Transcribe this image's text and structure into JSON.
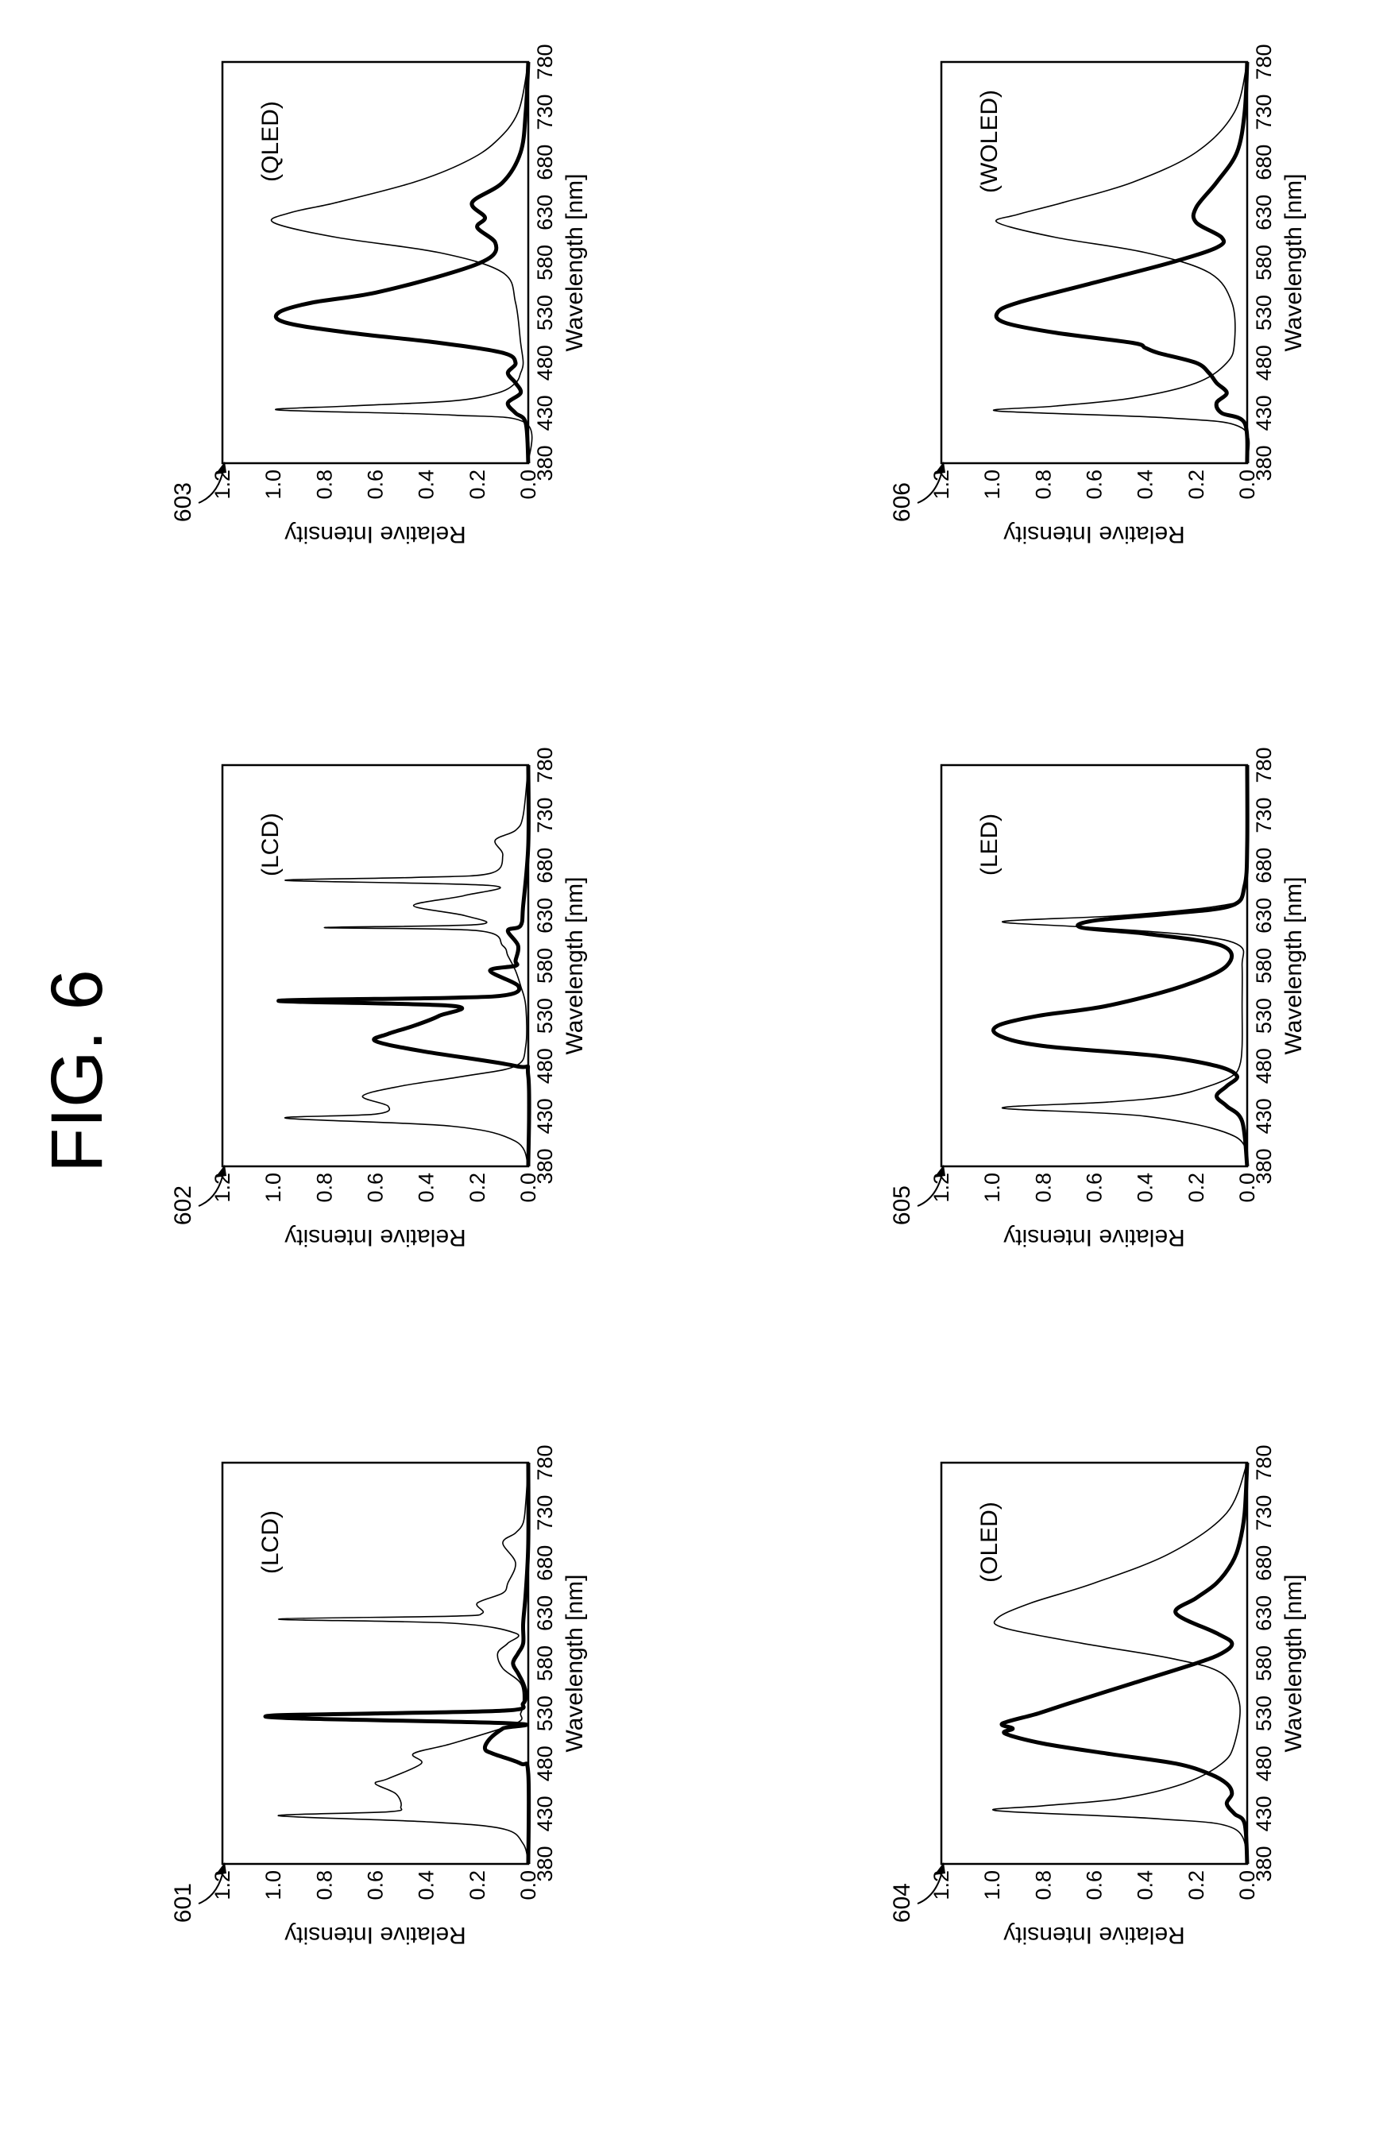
{
  "figure": {
    "title": "FIG. 6"
  },
  "chart_data": [
    {
      "ref": "601",
      "display": "(LCD)",
      "type": "line",
      "xlabel": "Wavelength [nm]",
      "ylabel": "Relative Intensity",
      "xlim": [
        380,
        780
      ],
      "ylim": [
        0,
        1.2
      ],
      "xticks": [
        "380",
        "430",
        "480",
        "530",
        "580",
        "630",
        "680",
        "730",
        "780"
      ],
      "yticks": [
        "0.0",
        "0.2",
        "0.4",
        "0.6",
        "0.8",
        "1.0",
        "1.2"
      ],
      "series": [
        {
          "style": "thin",
          "x": [
            380,
            400,
            415,
            422,
            428,
            432,
            437,
            450,
            460,
            465,
            480,
            490,
            500,
            520,
            530,
            540,
            560,
            575,
            590,
            600,
            610,
            620,
            624,
            627,
            630,
            640,
            650,
            660,
            680,
            700,
            710,
            720,
            740,
            780
          ],
          "y": [
            0,
            0.02,
            0.1,
            0.4,
            0.98,
            0.55,
            0.5,
            0.52,
            0.6,
            0.55,
            0.42,
            0.45,
            0.3,
            0.05,
            0.03,
            0.02,
            0.03,
            0.1,
            0.12,
            0.08,
            0.05,
            0.3,
            0.98,
            0.3,
            0.18,
            0.2,
            0.1,
            0.08,
            0.05,
            0.1,
            0.05,
            0.02,
            0.01,
            0
          ]
        },
        {
          "style": "thick",
          "x": [
            380,
            470,
            480,
            490,
            495,
            505,
            515,
            520,
            525,
            528,
            530,
            533,
            540,
            550,
            560,
            570,
            580,
            590,
            600,
            620,
            650,
            700,
            780
          ],
          "y": [
            0,
            0,
            0.03,
            0.14,
            0.17,
            0.15,
            0.1,
            0.06,
            0.9,
            1.0,
            0.6,
            0.08,
            0.02,
            0.01,
            0.02,
            0.04,
            0.06,
            0.04,
            0.02,
            0.02,
            0.01,
            0.0,
            0
          ]
        }
      ]
    },
    {
      "ref": "602",
      "display": "(LCD)",
      "type": "line",
      "xlabel": "Wavelength [nm]",
      "ylabel": "Relative Intensity",
      "xlim": [
        380,
        780
      ],
      "ylim": [
        0,
        1.2
      ],
      "xticks": [
        "380",
        "430",
        "480",
        "530",
        "580",
        "630",
        "680",
        "730",
        "780"
      ],
      "yticks": [
        "0.0",
        "0.2",
        "0.4",
        "0.6",
        "0.8",
        "1.0",
        "1.2"
      ],
      "series": [
        {
          "style": "thin",
          "x": [
            380,
            405,
            420,
            428,
            432,
            440,
            450,
            460,
            470,
            480,
            500,
            540,
            560,
            575,
            590,
            600,
            615,
            618,
            621,
            630,
            640,
            650,
            660,
            665,
            668,
            672,
            690,
            705,
            715,
            730,
            780
          ],
          "y": [
            0,
            0.05,
            0.3,
            0.95,
            0.6,
            0.55,
            0.65,
            0.5,
            0.25,
            0.05,
            0.01,
            0.01,
            0.03,
            0.05,
            0.08,
            0.1,
            0.2,
            0.8,
            0.2,
            0.25,
            0.45,
            0.25,
            0.15,
            0.95,
            0.45,
            0.15,
            0.1,
            0.13,
            0.05,
            0.02,
            0
          ]
        },
        {
          "style": "thick",
          "x": [
            380,
            470,
            480,
            495,
            505,
            512,
            520,
            530,
            540,
            545,
            548,
            551,
            560,
            575,
            580,
            585,
            600,
            615,
            620,
            640,
            700,
            780
          ],
          "y": [
            0,
            0,
            0.05,
            0.42,
            0.6,
            0.55,
            0.45,
            0.35,
            0.3,
            0.98,
            0.3,
            0.08,
            0.04,
            0.15,
            0.05,
            0.05,
            0.04,
            0.08,
            0.03,
            0.02,
            0.0,
            0
          ]
        }
      ]
    },
    {
      "ref": "603",
      "display": "(QLED)",
      "type": "line",
      "xlabel": "Wavelength [nm]",
      "ylabel": "Relative Intensity",
      "xlim": [
        380,
        780
      ],
      "ylim": [
        0,
        1.2
      ],
      "xticks": [
        "380",
        "430",
        "480",
        "530",
        "580",
        "630",
        "680",
        "730",
        "780"
      ],
      "yticks": [
        "0.0",
        "0.2",
        "0.4",
        "0.6",
        "0.8",
        "1.0",
        "1.2"
      ],
      "series": [
        {
          "style": "thin",
          "x": [
            380,
            420,
            428,
            433,
            437,
            442,
            450,
            460,
            470,
            480,
            500,
            540,
            570,
            590,
            605,
            620,
            630,
            640,
            660,
            680,
            700,
            730,
            780
          ],
          "y": [
            0,
            0.01,
            0.3,
            0.98,
            0.7,
            0.3,
            0.12,
            0.05,
            0.03,
            0.02,
            0.03,
            0.05,
            0.1,
            0.35,
            0.75,
            1.0,
            0.93,
            0.75,
            0.45,
            0.25,
            0.13,
            0.04,
            0
          ]
        },
        {
          "style": "thick",
          "x": [
            380,
            420,
            430,
            440,
            450,
            460,
            470,
            480,
            490,
            500,
            510,
            520,
            530,
            540,
            550,
            570,
            585,
            600,
            615,
            625,
            640,
            660,
            690,
            730,
            780
          ],
          "y": [
            0,
            0.01,
            0.05,
            0.08,
            0.03,
            0.05,
            0.08,
            0.05,
            0.1,
            0.35,
            0.7,
            0.95,
            0.98,
            0.85,
            0.6,
            0.3,
            0.15,
            0.13,
            0.2,
            0.17,
            0.22,
            0.1,
            0.03,
            0.01,
            0
          ]
        }
      ]
    },
    {
      "ref": "604",
      "display": "(OLED)",
      "type": "line",
      "xlabel": "Wavelength [nm]",
      "ylabel": "Relative Intensity",
      "xlim": [
        380,
        780
      ],
      "ylim": [
        0,
        1.2
      ],
      "xticks": [
        "380",
        "430",
        "480",
        "530",
        "580",
        "630",
        "680",
        "730",
        "780"
      ],
      "yticks": [
        "0.0",
        "0.2",
        "0.4",
        "0.6",
        "0.8",
        "1.0",
        "1.2"
      ],
      "series": [
        {
          "style": "thin",
          "x": [
            380,
            415,
            425,
            433,
            438,
            445,
            460,
            480,
            500,
            540,
            570,
            585,
            600,
            615,
            625,
            640,
            660,
            690,
            730,
            780
          ],
          "y": [
            0,
            0.05,
            0.35,
            0.98,
            0.8,
            0.5,
            0.25,
            0.1,
            0.05,
            0.03,
            0.1,
            0.3,
            0.65,
            0.95,
            0.98,
            0.85,
            0.6,
            0.3,
            0.08,
            0
          ]
        },
        {
          "style": "thick",
          "x": [
            380,
            420,
            430,
            440,
            450,
            460,
            470,
            480,
            490,
            500,
            510,
            515,
            520,
            530,
            540,
            560,
            580,
            590,
            600,
            610,
            630,
            645,
            660,
            680,
            700,
            730,
            780
          ],
          "y": [
            0,
            0.01,
            0.05,
            0.08,
            0.06,
            0.08,
            0.15,
            0.28,
            0.55,
            0.8,
            0.95,
            0.92,
            0.96,
            0.82,
            0.7,
            0.45,
            0.2,
            0.1,
            0.06,
            0.12,
            0.28,
            0.2,
            0.12,
            0.06,
            0.03,
            0.01,
            0
          ]
        }
      ]
    },
    {
      "ref": "605",
      "display": "(LED)",
      "type": "line",
      "xlabel": "Wavelength [nm]",
      "ylabel": "Relative Intensity",
      "xlim": [
        380,
        780
      ],
      "ylim": [
        0,
        1.2
      ],
      "xticks": [
        "380",
        "430",
        "480",
        "530",
        "580",
        "630",
        "680",
        "730",
        "780"
      ],
      "yticks": [
        "0.0",
        "0.2",
        "0.4",
        "0.6",
        "0.8",
        "1.0",
        "1.2"
      ],
      "series": [
        {
          "style": "thin",
          "x": [
            380,
            410,
            430,
            438,
            444,
            450,
            460,
            470,
            480,
            500,
            540,
            580,
            600,
            610,
            618,
            624,
            630,
            640,
            650,
            680,
            780
          ],
          "y": [
            0,
            0.05,
            0.4,
            0.96,
            0.55,
            0.3,
            0.15,
            0.06,
            0.03,
            0.02,
            0.02,
            0.02,
            0.03,
            0.2,
            0.6,
            0.96,
            0.5,
            0.1,
            0.02,
            0,
            0
          ]
        },
        {
          "style": "thick",
          "x": [
            380,
            425,
            440,
            450,
            460,
            470,
            480,
            490,
            500,
            510,
            520,
            530,
            540,
            560,
            580,
            600,
            612,
            618,
            625,
            632,
            640,
            660,
            700,
            780
          ],
          "y": [
            0,
            0.02,
            0.08,
            0.12,
            0.08,
            0.04,
            0.12,
            0.35,
            0.8,
            0.97,
            0.98,
            0.82,
            0.55,
            0.25,
            0.08,
            0.1,
            0.4,
            0.65,
            0.6,
            0.3,
            0.06,
            0.01,
            0,
            0
          ]
        }
      ]
    },
    {
      "ref": "606",
      "display": "(WOLED)",
      "type": "line",
      "xlabel": "Wavelength [nm]",
      "ylabel": "Relative Intensity",
      "xlim": [
        380,
        780
      ],
      "ylim": [
        0,
        1.2
      ],
      "xticks": [
        "380",
        "430",
        "480",
        "530",
        "580",
        "630",
        "680",
        "730",
        "780"
      ],
      "yticks": [
        "0.0",
        "0.2",
        "0.4",
        "0.6",
        "0.8",
        "1.0",
        "1.2"
      ],
      "series": [
        {
          "style": "thin",
          "x": [
            380,
            415,
            425,
            432,
            437,
            445,
            460,
            480,
            500,
            540,
            570,
            590,
            605,
            620,
            628,
            640,
            660,
            690,
            730,
            780
          ],
          "y": [
            0,
            0.02,
            0.3,
            0.98,
            0.75,
            0.45,
            0.2,
            0.08,
            0.05,
            0.06,
            0.15,
            0.4,
            0.75,
            0.98,
            0.9,
            0.72,
            0.45,
            0.2,
            0.05,
            0
          ]
        },
        {
          "style": "thick",
          "x": [
            380,
            420,
            430,
            440,
            450,
            460,
            470,
            480,
            490,
            495,
            500,
            510,
            520,
            530,
            540,
            560,
            580,
            595,
            605,
            620,
            635,
            660,
            690,
            730,
            780
          ],
          "y": [
            0,
            0.01,
            0.1,
            0.12,
            0.08,
            0.12,
            0.15,
            0.2,
            0.35,
            0.4,
            0.45,
            0.75,
            0.95,
            0.98,
            0.9,
            0.6,
            0.3,
            0.12,
            0.1,
            0.2,
            0.2,
            0.12,
            0.04,
            0.01,
            0
          ]
        }
      ]
    }
  ]
}
